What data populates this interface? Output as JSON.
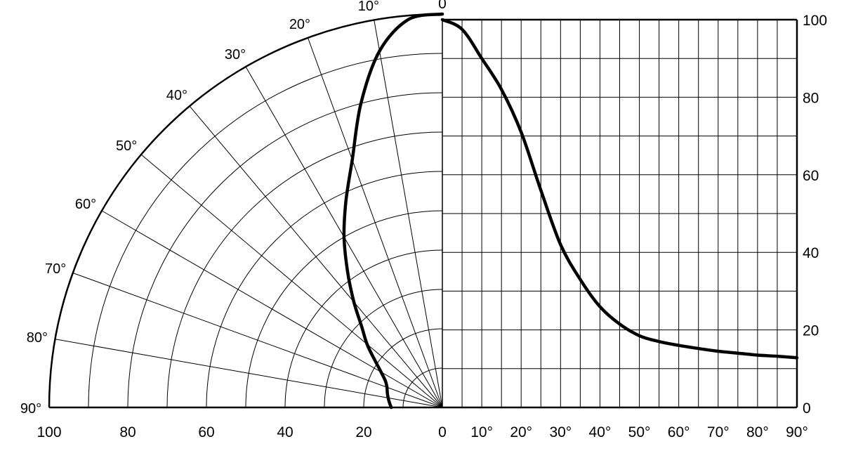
{
  "chart_data": {
    "type": "line",
    "title": "",
    "xlabel": "",
    "ylabel": "",
    "grid": true,
    "legend": "none",
    "colors": {
      "ink": "#000000",
      "background": "#ffffff"
    },
    "polar_panel": {
      "angle_ticks": [
        {
          "value": 0,
          "label": "0"
        },
        {
          "value": 10,
          "label": "10°"
        },
        {
          "value": 20,
          "label": "20°"
        },
        {
          "value": 30,
          "label": "30°"
        },
        {
          "value": 40,
          "label": "40°"
        },
        {
          "value": 50,
          "label": "50°"
        },
        {
          "value": 60,
          "label": "60°"
        },
        {
          "value": 70,
          "label": "70°"
        },
        {
          "value": 80,
          "label": "80°"
        },
        {
          "value": 90,
          "label": "90°"
        }
      ],
      "radius_ticks": [
        {
          "value": 100,
          "label": "100"
        },
        {
          "value": 80,
          "label": "80"
        },
        {
          "value": 60,
          "label": "60"
        },
        {
          "value": 40,
          "label": "40"
        },
        {
          "value": 20,
          "label": "20"
        },
        {
          "value": 0,
          "label": "0"
        }
      ],
      "radius_range": [
        0,
        100
      ],
      "angle_range": [
        0,
        90
      ],
      "series": {
        "points": [
          {
            "angle": 0,
            "value": 100
          },
          {
            "angle": 5,
            "value": 99
          },
          {
            "angle": 10,
            "value": 92
          },
          {
            "angle": 15,
            "value": 80
          },
          {
            "angle": 20,
            "value": 67
          },
          {
            "angle": 25,
            "value": 58
          },
          {
            "angle": 30,
            "value": 50
          },
          {
            "angle": 35,
            "value": 42
          },
          {
            "angle": 40,
            "value": 35
          },
          {
            "angle": 45,
            "value": 29
          },
          {
            "angle": 50,
            "value": 25
          },
          {
            "angle": 55,
            "value": 21
          },
          {
            "angle": 60,
            "value": 18
          },
          {
            "angle": 65,
            "value": 16
          },
          {
            "angle": 70,
            "value": 15
          },
          {
            "angle": 75,
            "value": 14.5
          },
          {
            "angle": 80,
            "value": 14
          },
          {
            "angle": 85,
            "value": 13.5
          },
          {
            "angle": 90,
            "value": 13
          }
        ]
      }
    },
    "cartesian_panel": {
      "x_ticks": [
        {
          "value": 0,
          "label": "0"
        },
        {
          "value": 10,
          "label": "10°"
        },
        {
          "value": 20,
          "label": "20°"
        },
        {
          "value": 30,
          "label": "30°"
        },
        {
          "value": 40,
          "label": "40°"
        },
        {
          "value": 50,
          "label": "50°"
        },
        {
          "value": 60,
          "label": "60°"
        },
        {
          "value": 70,
          "label": "70°"
        },
        {
          "value": 80,
          "label": "80°"
        },
        {
          "value": 90,
          "label": "90°"
        }
      ],
      "y_ticks": [
        {
          "value": 0,
          "label": "0"
        },
        {
          "value": 20,
          "label": "20"
        },
        {
          "value": 40,
          "label": "40"
        },
        {
          "value": 60,
          "label": "60"
        },
        {
          "value": 80,
          "label": "80"
        },
        {
          "value": 100,
          "label": "100"
        }
      ],
      "xlim": [
        0,
        90
      ],
      "ylim": [
        0,
        100
      ],
      "series": {
        "x": [
          0,
          5,
          10,
          15,
          20,
          25,
          30,
          35,
          40,
          45,
          50,
          55,
          60,
          65,
          70,
          75,
          80,
          85,
          90
        ],
        "y": [
          100,
          97.5,
          90,
          82,
          71,
          56,
          42,
          33,
          26,
          21.5,
          18.5,
          17,
          16,
          15.2,
          14.5,
          14,
          13.5,
          13.2,
          12.8
        ]
      }
    }
  }
}
